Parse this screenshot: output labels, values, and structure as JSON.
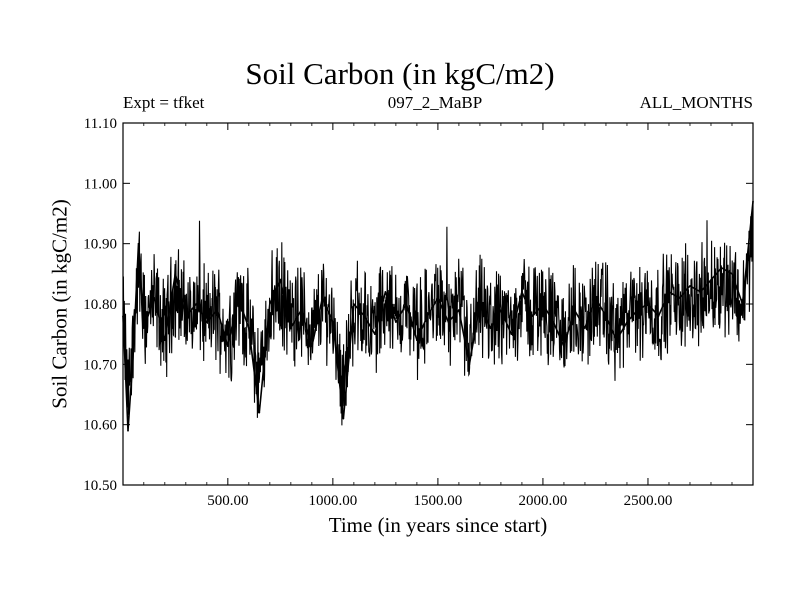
{
  "chart_data": {
    "type": "line",
    "title": "Soil Carbon (in kgC/m2)",
    "left_note": "Expt = tfket",
    "center_note": "097_2_MaBP",
    "right_note": "ALL_MONTHS",
    "xlabel": "Time (in years since start)",
    "ylabel": "Soil Carbon (in kgC/m2)",
    "xlim": [
      1,
      3000
    ],
    "ylim": [
      10.5,
      11.1
    ],
    "xticks": [
      500,
      1000,
      1500,
      2000,
      2500
    ],
    "xtick_labels": [
      "500.00",
      "1000.00",
      "1500.00",
      "2000.00",
      "2500.00"
    ],
    "yticks": [
      10.5,
      10.6,
      10.7,
      10.8,
      10.9,
      11.0,
      11.1
    ],
    "ytick_labels": [
      "10.50",
      "10.60",
      "10.70",
      "10.80",
      "10.90",
      "11.00",
      "11.10"
    ],
    "grid": false,
    "series": [
      {
        "color": "#000000",
        "x": [
          1,
          25,
          50,
          75,
          100,
          150,
          200,
          250,
          300,
          350,
          400,
          450,
          500,
          550,
          600,
          650,
          700,
          750,
          800,
          850,
          900,
          950,
          1000,
          1050,
          1100,
          1150,
          1200,
          1250,
          1300,
          1350,
          1400,
          1450,
          1500,
          1550,
          1600,
          1650,
          1700,
          1750,
          1800,
          1850,
          1900,
          1950,
          2000,
          2050,
          2100,
          2150,
          2200,
          2250,
          2300,
          2350,
          2400,
          2450,
          2500,
          2550,
          2600,
          2650,
          2700,
          2750,
          2800,
          2850,
          2900,
          2950,
          3000
        ],
        "values": [
          10.78,
          10.59,
          10.72,
          10.9,
          10.76,
          10.81,
          10.74,
          10.85,
          10.78,
          10.8,
          10.77,
          10.79,
          10.73,
          10.81,
          10.76,
          10.62,
          10.8,
          10.84,
          10.76,
          10.79,
          10.73,
          10.81,
          10.77,
          10.61,
          10.8,
          10.78,
          10.75,
          10.82,
          10.77,
          10.8,
          10.74,
          10.78,
          10.81,
          10.77,
          10.79,
          10.7,
          10.8,
          10.76,
          10.79,
          10.75,
          10.82,
          10.78,
          10.8,
          10.77,
          10.73,
          10.79,
          10.76,
          10.81,
          10.78,
          10.74,
          10.77,
          10.79,
          10.8,
          10.78,
          10.82,
          10.81,
          10.83,
          10.82,
          10.84,
          10.86,
          10.85,
          10.8,
          10.97
        ]
      }
    ]
  }
}
